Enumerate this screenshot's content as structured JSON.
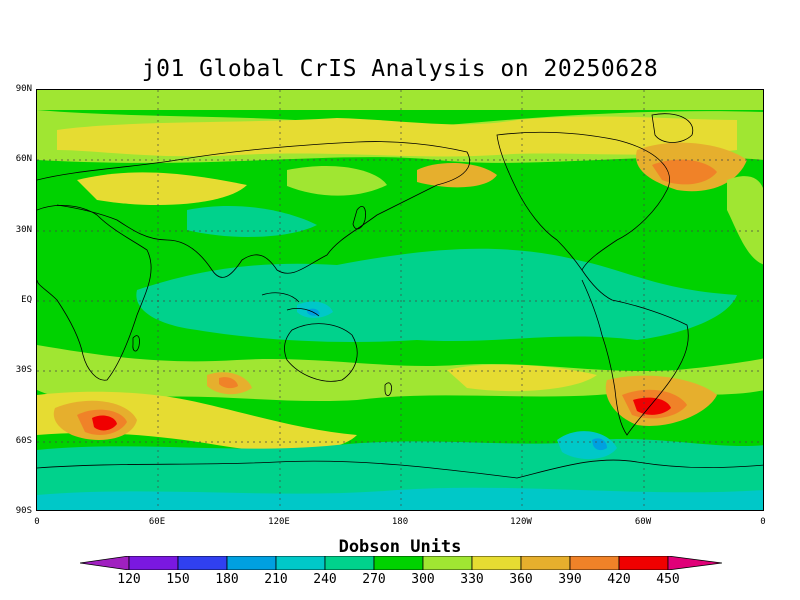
{
  "title": "j01 Global CrIS Analysis on 20250628",
  "map": {
    "projection": "cylindrical-equidistant",
    "lat_range": [
      -90,
      90
    ],
    "lon_range": [
      0,
      360
    ],
    "y_axis_ticks": [
      "90N",
      "60N",
      "30N",
      "EQ",
      "30S",
      "60S",
      "90S"
    ],
    "x_axis_ticks": [
      "0",
      "60E",
      "120E",
      "180",
      "120W",
      "60W",
      "0"
    ],
    "gridlines": "dotted",
    "field": "total column ozone"
  },
  "colorbar": {
    "title": "Dobson Units",
    "labels": [
      "120",
      "150",
      "180",
      "210",
      "240",
      "270",
      "300",
      "330",
      "360",
      "390",
      "420",
      "450"
    ],
    "colors": [
      "#a020c0",
      "#7a18e0",
      "#3040f0",
      "#00a0e0",
      "#00c8c8",
      "#00d28c",
      "#00d200",
      "#a0e632",
      "#e6dc32",
      "#e6af2d",
      "#f08228",
      "#f00000",
      "#e00078"
    ]
  }
}
